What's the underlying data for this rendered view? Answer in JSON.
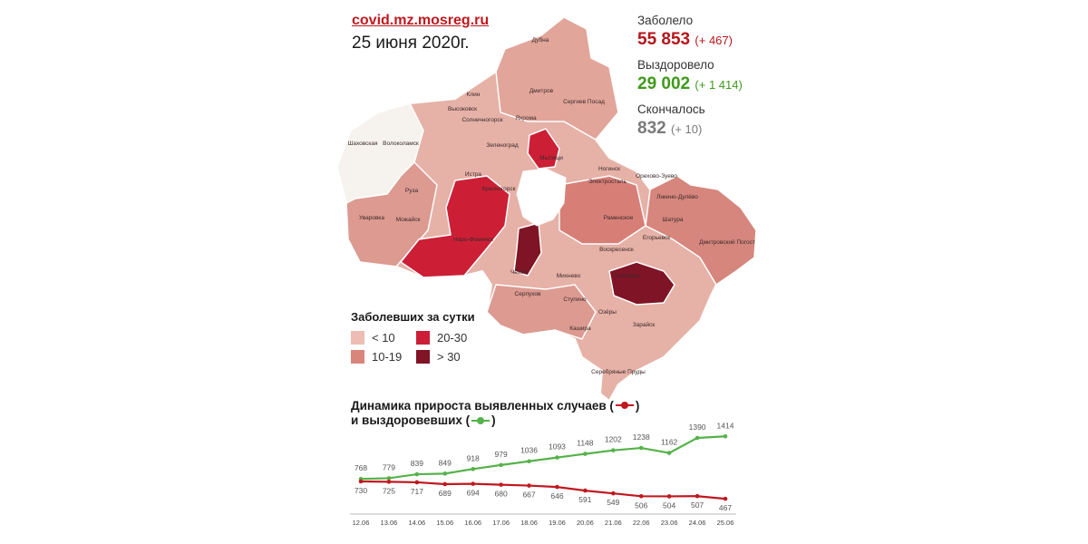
{
  "header": {
    "source": "covid.mz.mosreg.ru",
    "date": "25 июня 2020г."
  },
  "stats": {
    "infected_label": "Заболело",
    "infected_value": "55 853",
    "infected_delta": "(+ 467)",
    "recovered_label": "Выздоровело",
    "recovered_value": "29 002",
    "recovered_delta": "(+ 1 414)",
    "deaths_label": "Скончалось",
    "deaths_value": "832",
    "deaths_delta": "(+ 10)"
  },
  "map": {
    "labels": [
      {
        "t": "Дубна"
      },
      {
        "t": "Дмитров"
      },
      {
        "t": "Клин"
      },
      {
        "t": "Высоковск"
      },
      {
        "t": "Солнечногорск"
      },
      {
        "t": "Яхрома"
      },
      {
        "t": "Сергиев Посад"
      },
      {
        "t": "Шаховская"
      },
      {
        "t": "Волоколамск"
      },
      {
        "t": "Зеленоград"
      },
      {
        "t": "Истра"
      },
      {
        "t": "Мытищи"
      },
      {
        "t": "Ногинск"
      },
      {
        "t": "Электросталь"
      },
      {
        "t": "Орехово-Зуево"
      },
      {
        "t": "Руза"
      },
      {
        "t": "Красногорск"
      },
      {
        "t": "Ликино-Дулёво"
      },
      {
        "t": "Раменское"
      },
      {
        "t": "Шатура"
      },
      {
        "t": "Уваровка"
      },
      {
        "t": "Можайск"
      },
      {
        "t": "Наро-Фоминск"
      },
      {
        "t": "Егорьевск"
      },
      {
        "t": "Воскресенск"
      },
      {
        "t": "Дмитровский Погост"
      },
      {
        "t": "Чехов"
      },
      {
        "t": "Михнево"
      },
      {
        "t": "Коломна"
      },
      {
        "t": "Серпухов"
      },
      {
        "t": "Ступино"
      },
      {
        "t": "Озёры"
      },
      {
        "t": "Кашира"
      },
      {
        "t": "Зарайск"
      },
      {
        "t": "Серебряные Пруды"
      }
    ]
  },
  "legend": {
    "title": "Заболевших за сутки",
    "items": [
      {
        "label": "< 10",
        "color": "#edbdb3"
      },
      {
        "label": "20-30",
        "color": "#cc1f36"
      },
      {
        "label": "10-19",
        "color": "#d9857b"
      },
      {
        "label": "> 30",
        "color": "#7e1425"
      }
    ]
  },
  "chart_title": {
    "line1_prefix": "Динамика прироста выявленных случаев (",
    "line1_suffix": ")",
    "line2_prefix": "и выздоровевших (",
    "line2_suffix": ")"
  },
  "colors": {
    "infected": "#c0181f",
    "recovered": "#55b24a",
    "accent": "#b5161c"
  },
  "chart_data": {
    "type": "line",
    "title": "Динамика прироста выявленных случаев и выздоровевших",
    "categories": [
      "12.06",
      "13.06",
      "14.06",
      "15.06",
      "16.06",
      "17.06",
      "18.06",
      "19.06",
      "20.06",
      "21.06",
      "22.06",
      "23.06",
      "24.06",
      "25.06"
    ],
    "series": [
      {
        "values": [
          768,
          779,
          839,
          849,
          918,
          979,
          1036,
          1093,
          1148,
          1202,
          1238,
          1162,
          1390,
          1414
        ],
        "color": "#55b24a"
      },
      {
        "values": [
          730,
          725,
          717,
          689,
          694,
          680,
          667,
          646,
          591,
          549,
          506,
          504,
          507,
          467
        ],
        "color": "#c0181f"
      }
    ],
    "ylim": [
      400,
      1500
    ],
    "grid": false,
    "legend": "title"
  }
}
